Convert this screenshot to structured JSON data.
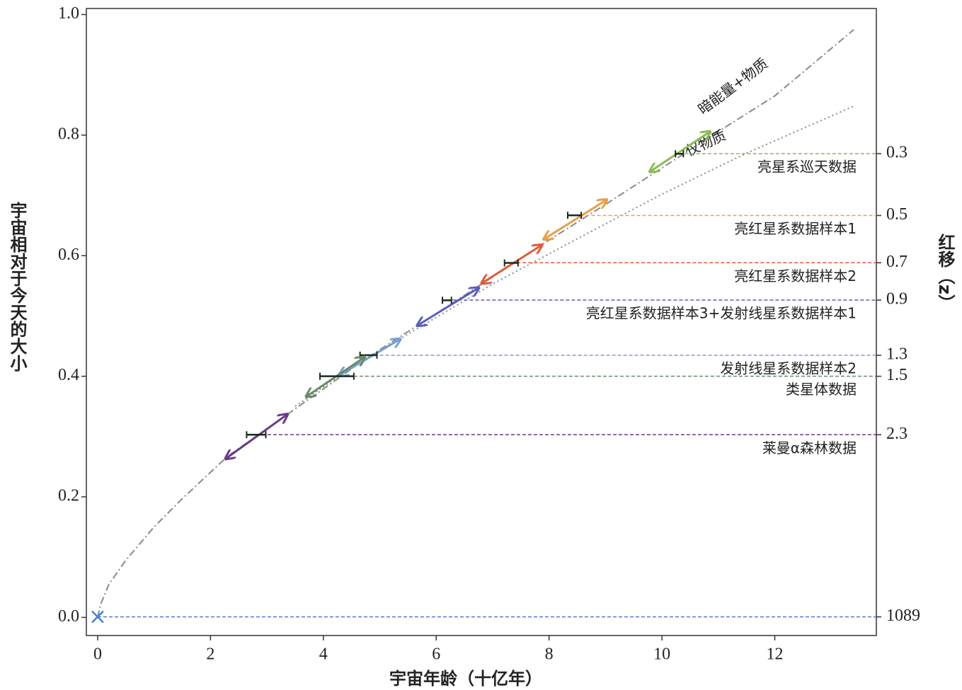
{
  "chart_data": {
    "type": "line",
    "xlabel": "宇宙年龄（十亿年）",
    "ylabel": "宇宙相对于今天的大小",
    "y2label": "红移（z）",
    "xlim": [
      -0.2,
      13.8
    ],
    "ylim": [
      -0.03,
      1.01
    ],
    "xticks": [
      0,
      2,
      4,
      6,
      8,
      10,
      12
    ],
    "yticks": [
      {
        "value": 0,
        "label": "0.0"
      },
      0.2,
      0.4,
      0.6,
      0.8,
      {
        "value": 1,
        "label": "1.0"
      }
    ],
    "y2scale": "redshift",
    "series": [
      {
        "name": "暗能量+物质",
        "color": "#8a8a8a",
        "style": "dashdot",
        "x": [
          0,
          0.05,
          0.2,
          0.5,
          1,
          1.5,
          2.3,
          3.35,
          4.8,
          6.3,
          7.9,
          9,
          10.9,
          12,
          13.4
        ],
        "values": [
          0,
          0.021,
          0.055,
          0.095,
          0.15,
          0.197,
          0.267,
          0.336,
          0.432,
          0.522,
          0.62,
          0.685,
          0.8,
          0.865,
          0.975
        ]
      },
      {
        "name": "仅物质",
        "color": "#8a8a8a",
        "style": "dotted",
        "x": [
          3.5,
          4.5,
          5.5,
          7,
          8.5,
          10,
          11.5,
          13.4
        ],
        "values": [
          0.35,
          0.415,
          0.47,
          0.553,
          0.628,
          0.702,
          0.77,
          0.848
        ]
      }
    ],
    "datasets": [
      {
        "name": "亮星系巡天数据",
        "z": 0.3,
        "color": "#8dbb55",
        "x": 10.31,
        "xerr": 0.07,
        "y": 0.769,
        "arrow_x": [
          9.8,
          10.84
        ],
        "arrow_y": [
          0.74,
          0.805
        ]
      },
      {
        "name": "亮红星系数据样本1",
        "z": 0.5,
        "color": "#e8a04a",
        "x": 8.45,
        "xerr": 0.12,
        "y": 0.667,
        "arrow_x": [
          7.92,
          9.01
        ],
        "arrow_y": [
          0.628,
          0.692
        ]
      },
      {
        "name": "亮红星系数据样本2",
        "z": 0.7,
        "color": "#e05a3a",
        "x": 7.33,
        "xerr": 0.12,
        "y": 0.588,
        "arrow_x": [
          6.82,
          7.86
        ],
        "arrow_y": [
          0.555,
          0.617
        ]
      },
      {
        "name": "亮红星系数据样本3+发射线星系数据样本1",
        "z": 0.9,
        "color": "#5a5fb8",
        "x": 6.19,
        "xerr": 0.08,
        "y": 0.526,
        "arrow_x": [
          5.68,
          6.74
        ],
        "arrow_y": [
          0.485,
          0.546
        ]
      },
      {
        "name": "发射线星系数据样本2",
        "z": 1.3,
        "color": "#7a9fd0",
        "x": 4.8,
        "xerr": 0.15,
        "y": 0.435,
        "arrow_x": [
          4.29,
          5.35
        ],
        "arrow_y": [
          0.402,
          0.461
        ]
      },
      {
        "name": "类星体数据",
        "z": 1.5,
        "color": "#6a8a6a",
        "x": 4.24,
        "xerr": 0.3,
        "y": 0.4,
        "arrow_x": [
          3.71,
          4.72
        ],
        "arrow_y": [
          0.367,
          0.431
        ]
      },
      {
        "name": "莱曼α森林数据",
        "z": 2.3,
        "color": "#6a3a8a",
        "x": 2.81,
        "xerr": 0.17,
        "y": 0.303,
        "arrow_x": [
          2.28,
          3.35
        ],
        "arrow_y": [
          0.264,
          0.336
        ]
      },
      {
        "z": 1089,
        "color": "#4a80d0",
        "x": 0,
        "y": 0.001
      }
    ]
  }
}
